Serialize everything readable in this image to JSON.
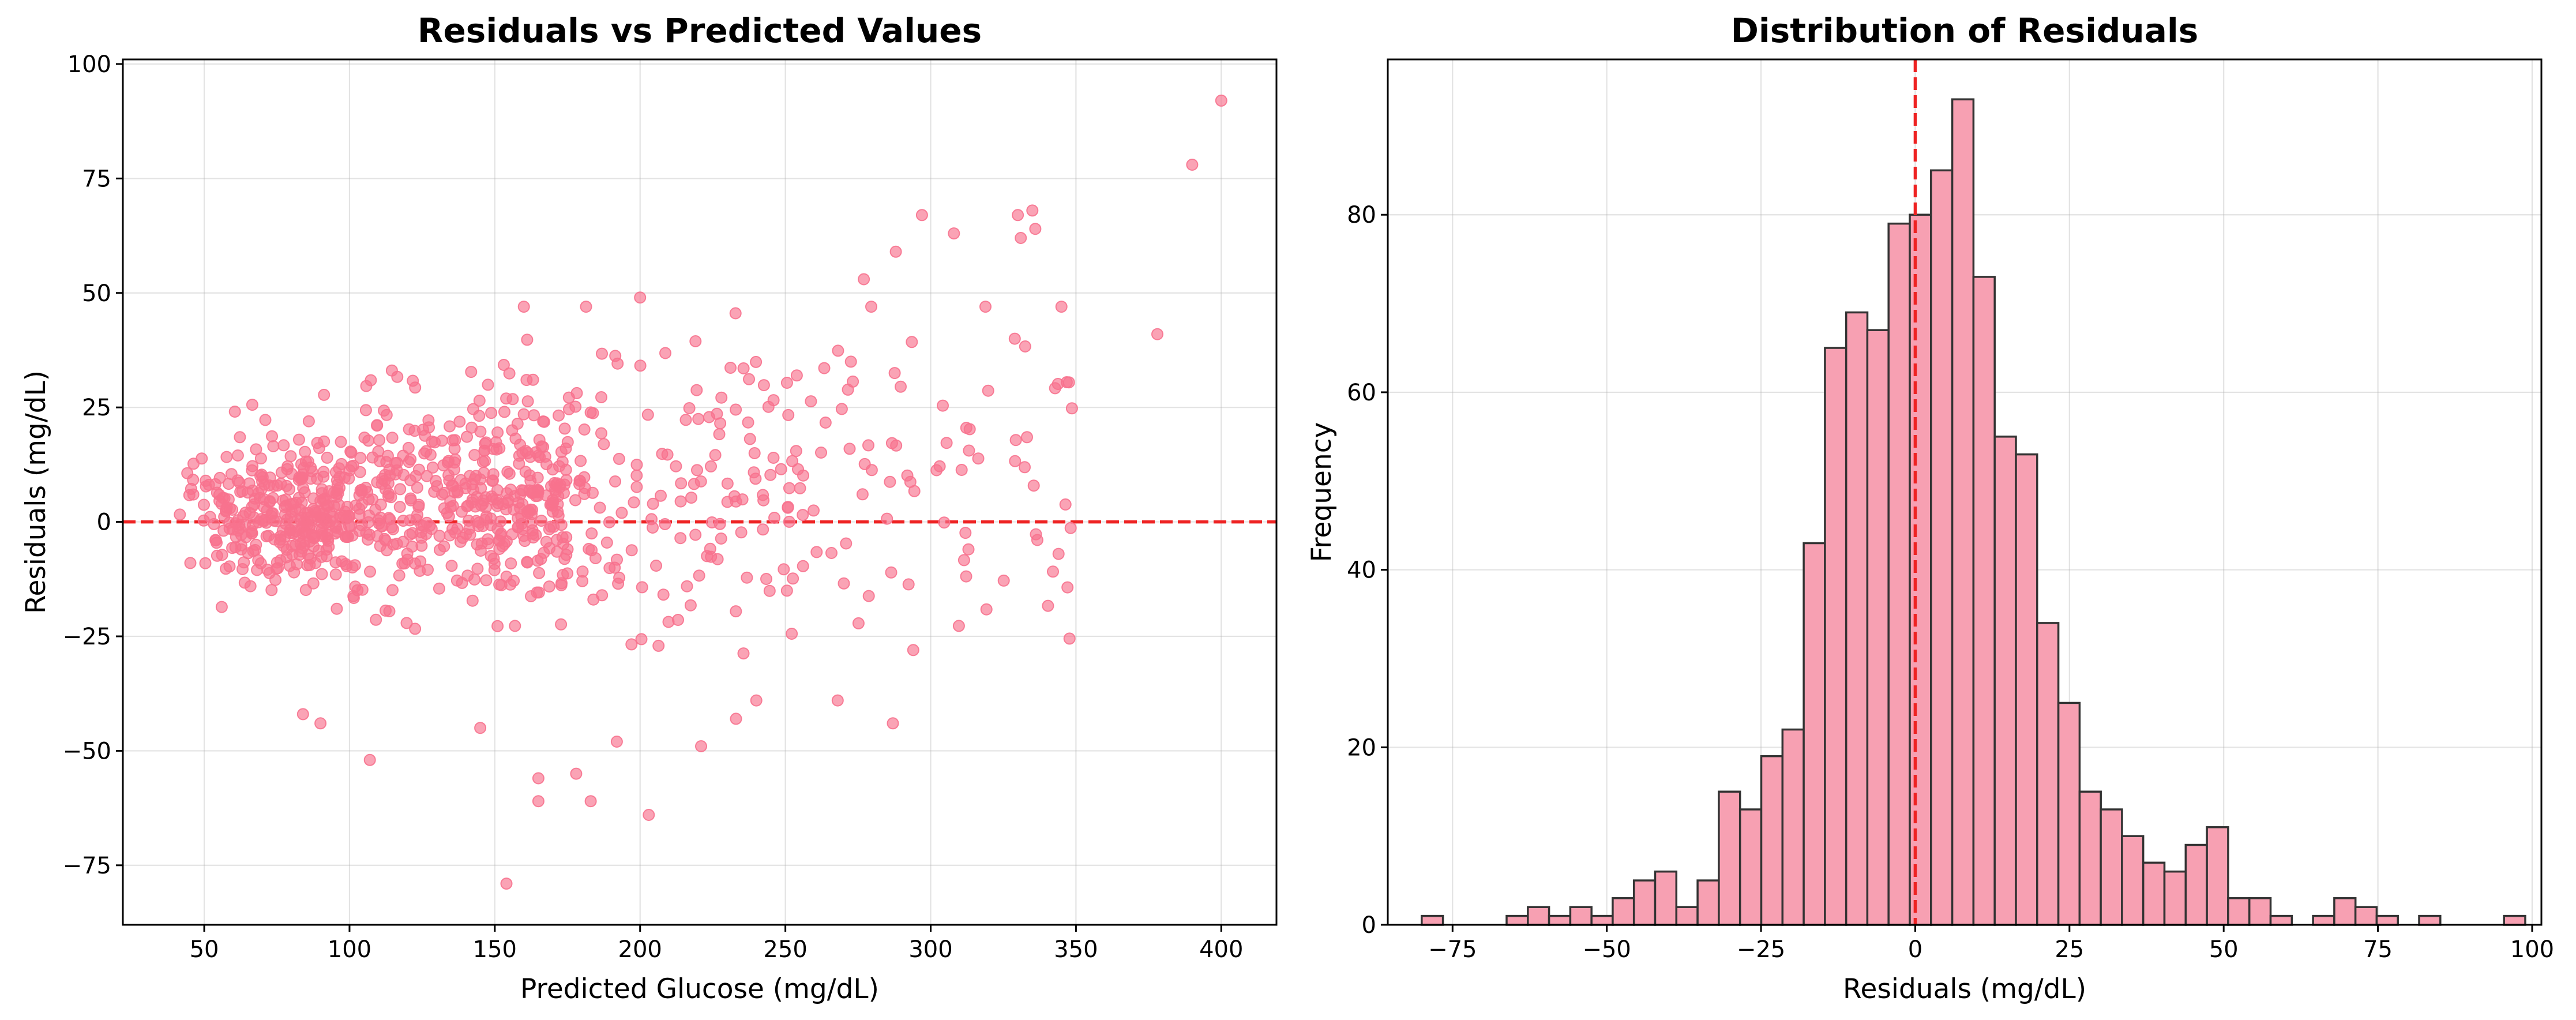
{
  "colors": {
    "marker": "#f7728e",
    "bar_fill": "#f7a0b2",
    "bar_edge": "#333333",
    "reference_line": "#ee2222"
  },
  "chart_data": [
    {
      "type": "scatter",
      "title": "Residuals vs Predicted Values",
      "xlabel": "Predicted Glucose (mg/dL)",
      "ylabel": "Residuals (mg/dL)",
      "xlim": [
        22,
        419
      ],
      "ylim": [
        -88,
        101
      ],
      "xticks": [
        50,
        100,
        150,
        200,
        250,
        300,
        350,
        400
      ],
      "yticks": [
        -75,
        -50,
        -25,
        0,
        25,
        50,
        75,
        100
      ],
      "grid": true,
      "reference_line": {
        "orientation": "horizontal",
        "value": 0,
        "style": "dashed"
      },
      "seed": 7,
      "clusters": [
        {
          "n": 330,
          "x_range": [
            40,
            100
          ],
          "x_shape": "triangle-low",
          "y_mean": 2,
          "y_sd": 11
        },
        {
          "n": 430,
          "x_range": [
            100,
            175
          ],
          "x_shape": "uniform",
          "y_mean": 4,
          "y_sd": 16
        },
        {
          "n": 150,
          "x_range": [
            175,
            260
          ],
          "x_shape": "uniform",
          "y_mean": 5,
          "y_sd": 22
        },
        {
          "n": 70,
          "x_range": [
            260,
            350
          ],
          "x_shape": "uniform",
          "y_mean": 12,
          "y_sd": 24
        }
      ],
      "points": [
        {
          "x": 400,
          "y": 92
        },
        {
          "x": 390,
          "y": 78
        },
        {
          "x": 378,
          "y": 41
        },
        {
          "x": 345,
          "y": 47
        },
        {
          "x": 335,
          "y": 68
        },
        {
          "x": 336,
          "y": 64
        },
        {
          "x": 330,
          "y": 67
        },
        {
          "x": 331,
          "y": 62
        },
        {
          "x": 297,
          "y": 67
        },
        {
          "x": 308,
          "y": 63
        },
        {
          "x": 288,
          "y": 59
        },
        {
          "x": 277,
          "y": 53
        },
        {
          "x": 154,
          "y": -79
        },
        {
          "x": 203,
          "y": -64
        },
        {
          "x": 165,
          "y": -61
        },
        {
          "x": 183,
          "y": -61
        },
        {
          "x": 165,
          "y": -56
        },
        {
          "x": 178,
          "y": -55
        },
        {
          "x": 107,
          "y": -52
        },
        {
          "x": 221,
          "y": -49
        },
        {
          "x": 192,
          "y": -48
        },
        {
          "x": 200,
          "y": 49
        },
        {
          "x": 160,
          "y": 47
        },
        {
          "x": 287,
          "y": -44
        },
        {
          "x": 90,
          "y": -44
        },
        {
          "x": 145,
          "y": -45
        },
        {
          "x": 84,
          "y": -42
        },
        {
          "x": 268,
          "y": -39
        },
        {
          "x": 240,
          "y": -39
        },
        {
          "x": 233,
          "y": -43
        },
        {
          "x": 344,
          "y": -7
        },
        {
          "x": 313,
          "y": -6
        },
        {
          "x": 294,
          "y": -28
        }
      ]
    },
    {
      "type": "bar",
      "title": "Distribution of Residuals",
      "xlabel": "Residuals (mg/dL)",
      "ylabel": "Frequency",
      "xlim": [
        -85.5,
        101.5
      ],
      "ylim": [
        0,
        97.5
      ],
      "xticks": [
        -75,
        -50,
        -25,
        0,
        25,
        50,
        75,
        100
      ],
      "yticks": [
        0,
        20,
        40,
        60,
        80
      ],
      "grid": true,
      "reference_line": {
        "orientation": "vertical",
        "value": 0,
        "style": "dashed"
      },
      "bin_start": -80,
      "bin_width": 3.44,
      "counts": [
        1,
        0,
        0,
        0,
        1,
        2,
        1,
        2,
        1,
        3,
        5,
        6,
        2,
        5,
        15,
        13,
        19,
        22,
        43,
        65,
        69,
        67,
        79,
        80,
        85,
        93,
        73,
        55,
        53,
        34,
        25,
        15,
        13,
        10,
        7,
        6,
        9,
        11,
        3,
        3,
        1,
        0,
        1,
        3,
        2,
        1,
        0,
        1,
        0,
        0,
        0,
        1
      ]
    }
  ]
}
